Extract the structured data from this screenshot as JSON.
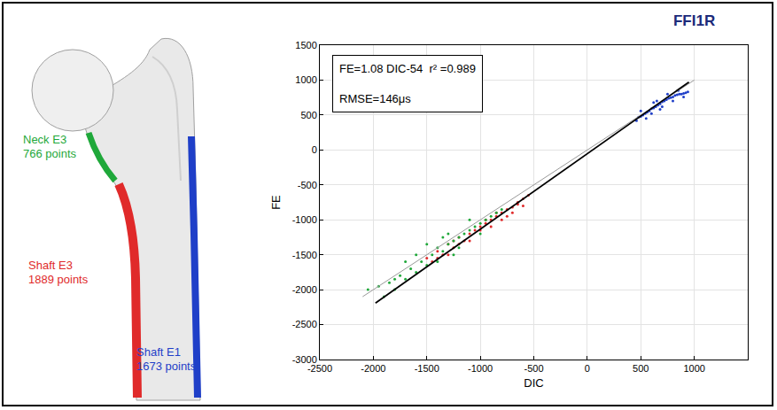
{
  "diagram": {
    "labels": [
      {
        "text": "Neck E3",
        "count": "766 points",
        "color": "#1fa83a"
      },
      {
        "text": "Shaft E3",
        "count": "1889 points",
        "color": "#e02a2a"
      },
      {
        "text": "Shaft E1",
        "count": "1673 points",
        "color": "#1f3fc8"
      }
    ]
  },
  "chart_data": {
    "type": "scatter",
    "title": "FFI1R",
    "x_label": "DIC",
    "y_label": "FE",
    "annotations": [
      "FE=1.08 DIC-54  r² =0.989",
      "RMSE=146μs"
    ],
    "xlim": [
      -2500,
      1500
    ],
    "ylim": [
      -3000,
      1500
    ],
    "xticks": [
      -2500,
      -2000,
      -1500,
      -1000,
      -500,
      0,
      500,
      1000
    ],
    "yticks": [
      -3000,
      -2500,
      -2000,
      -1500,
      -1000,
      -500,
      0,
      500,
      1000,
      1500
    ],
    "grid": true,
    "series": [
      {
        "name": "Shaft E1",
        "type": "scatter",
        "marker": "dot",
        "color": "#1f3fc8",
        "x": [
          460,
          480,
          500,
          520,
          540,
          560,
          580,
          600,
          620,
          640,
          660,
          680,
          700,
          720,
          740,
          760,
          780,
          800,
          820,
          840,
          860,
          880,
          900,
          920,
          940,
          500,
          550,
          600,
          650,
          700,
          750,
          800,
          850,
          900,
          620,
          680
        ],
        "y": [
          420,
          470,
          480,
          500,
          520,
          540,
          560,
          590,
          600,
          620,
          640,
          660,
          690,
          700,
          720,
          740,
          750,
          760,
          780,
          790,
          800,
          800,
          810,
          820,
          830,
          560,
          450,
          520,
          700,
          620,
          800,
          700,
          850,
          760,
          680,
          580
        ]
      },
      {
        "name": "Shaft E3",
        "type": "scatter",
        "marker": "dot",
        "color": "#e02a2a",
        "x": [
          -1500,
          -1450,
          -1400,
          -1350,
          -1300,
          -1250,
          -1200,
          -1150,
          -1100,
          -1050,
          -1000,
          -950,
          -900,
          -850,
          -800,
          -750,
          -700,
          -650,
          -600,
          -550,
          -1300,
          -1200,
          -1100,
          -1000,
          -900,
          -800,
          -750,
          -700,
          -1400,
          -1250,
          -950,
          -850,
          -650,
          -600
        ],
        "y": [
          -1550,
          -1600,
          -1450,
          -1500,
          -1350,
          -1400,
          -1250,
          -1300,
          -1200,
          -1150,
          -1100,
          -1050,
          -1000,
          -950,
          -900,
          -850,
          -820,
          -780,
          -700,
          -650,
          -1500,
          -1350,
          -1300,
          -1150,
          -1100,
          -1000,
          -950,
          -900,
          -1550,
          -1300,
          -1000,
          -900,
          -750,
          -800
        ]
      },
      {
        "name": "Neck E3",
        "type": "scatter",
        "marker": "dot",
        "color": "#1fa83a",
        "x": [
          -2050,
          -1950,
          -1900,
          -1850,
          -1800,
          -1750,
          -1700,
          -1650,
          -1600,
          -1550,
          -1500,
          -1450,
          -1400,
          -1350,
          -1300,
          -1250,
          -1200,
          -1150,
          -1100,
          -1050,
          -1000,
          -950,
          -900,
          -850,
          -800,
          -1500,
          -1400,
          -1300,
          -1200,
          -1100,
          -1000,
          -1600,
          -1700,
          -1800,
          -1350,
          -1250
        ],
        "y": [
          -2000,
          -1950,
          -2100,
          -1900,
          -1850,
          -1800,
          -1850,
          -1700,
          -1750,
          -1600,
          -1650,
          -1500,
          -1400,
          -1450,
          -1350,
          -1300,
          -1250,
          -1200,
          -1150,
          -1100,
          -1050,
          -1000,
          -950,
          -900,
          -850,
          -1350,
          -1600,
          -1200,
          -1400,
          -1000,
          -1200,
          -1500,
          -1600,
          -2000,
          -1250,
          -1500
        ]
      },
      {
        "type": "line",
        "line_style": "solid",
        "color": "#999999",
        "x": [
          -2100,
          1000
        ],
        "y": [
          -2100,
          1000
        ]
      },
      {
        "type": "line",
        "line_style": "solid",
        "color": "#000000",
        "x": [
          -1980,
          950
        ],
        "y": [
          -2192,
          972
        ]
      }
    ]
  }
}
